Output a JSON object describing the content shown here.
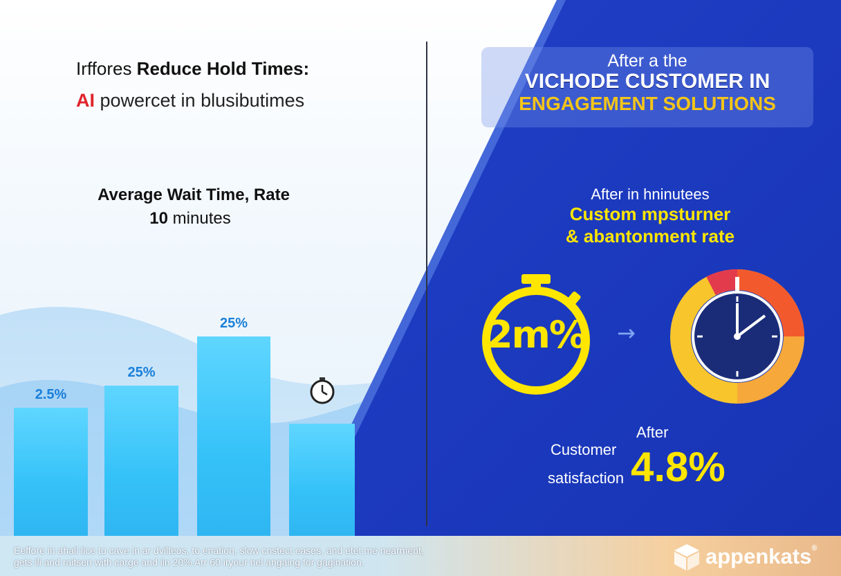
{
  "left": {
    "headline_prefix": "Irffores ",
    "headline_bold": "Reduce Hold Times:",
    "subline_ai": "AI",
    "subline_rest": " powercet in blusibutimes",
    "avg_title": "Average Wait Time, Rate",
    "avg_value_bold": "10",
    "avg_value_rest": " minutes"
  },
  "chart_data": {
    "type": "bar",
    "categories": [
      "",
      "",
      "",
      ""
    ],
    "values": [
      2.5,
      25,
      25,
      null
    ],
    "bar_levels": [
      0.47,
      0.55,
      0.73,
      0.41
    ],
    "data_labels": [
      "2.5%",
      "25%",
      "25%",
      ""
    ],
    "title": "Average Wait Time, Rate",
    "colors": {
      "bar": "#3cc6fa",
      "label": "#1a7fd8"
    }
  },
  "right": {
    "title_line1": "After a the",
    "title_line2": "VICHODE CUSTOMER IN",
    "title_line3": "ENGAGEMENT SOLUTIONS",
    "after_line": "After in hninutees",
    "custom_line1": "Custom mpsturner",
    "custom_line2": "& abantonment rate",
    "stopwatch_value": "2m%",
    "arrow": "→",
    "sat_after": "After",
    "sat_label1": "Customer",
    "sat_label2": "satisfaction",
    "sat_value": "4.8%"
  },
  "footer": {
    "line1": "Eeffore in ahall lice to cave in ar dvilteos, to enation, slow cnstect eases, and etet me nearment,",
    "line2": "gets ili and raitsen with carge and iin 20% Arr 60 iryour nel angaing for gagination.",
    "brand": "appenkats",
    "brand_mark": "®"
  },
  "colors": {
    "accent_blue": "#1b3fc4",
    "accent_yellow": "#ffe600",
    "accent_red": "#e0242c"
  }
}
